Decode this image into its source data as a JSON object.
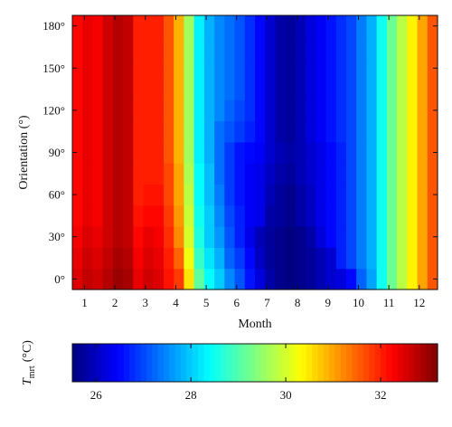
{
  "chart_data": {
    "type": "heatmap",
    "title": "",
    "xlabel": "Month",
    "ylabel": "Orientation (°)",
    "x_tick_labels": [
      "1",
      "2",
      "3",
      "4",
      "5",
      "6",
      "7",
      "8",
      "9",
      "10",
      "11",
      "12"
    ],
    "y_tick_labels": [
      "0°",
      "30°",
      "60°",
      "90°",
      "120°",
      "150°",
      "180°"
    ],
    "x_ticks": [
      1,
      2,
      3,
      4,
      5,
      6,
      7,
      8,
      9,
      10,
      11,
      12
    ],
    "y_ticks": [
      0,
      30,
      60,
      90,
      120,
      150,
      180
    ],
    "xlim": [
      0.6,
      12.6
    ],
    "ylim": [
      -7.5,
      187.5
    ],
    "x_step": 0.33333,
    "y_step": 15,
    "x_start": 0.6,
    "y_start": -7.5,
    "colormap": "jet",
    "colorbar": {
      "label_main": "T",
      "label_sub": "mrt",
      "label_unit": "(°C)",
      "range": [
        25.5,
        33.2
      ],
      "ticks": [
        26,
        28,
        30,
        32
      ],
      "tick_labels": [
        "26",
        "28",
        "30",
        "32"
      ]
    },
    "grid": false,
    "rows_bottom_to_top": [
      [
        32.5,
        32.7,
        32.6,
        32.8,
        33.0,
        32.9,
        32.4,
        32.6,
        32.5,
        32.1,
        31.8,
        30.5,
        29.1,
        28.4,
        28.0,
        27.5,
        27.1,
        26.6,
        26.2,
        25.8,
        25.6,
        25.5,
        25.6,
        25.7,
        25.9,
        26.1,
        26.2,
        26.5,
        27.2,
        27.7,
        28.5,
        29.2,
        29.8,
        30.4,
        31.0,
        31.6
      ],
      [
        32.4,
        32.6,
        32.5,
        32.7,
        32.9,
        32.8,
        32.3,
        32.5,
        32.4,
        32.0,
        31.5,
        30.2,
        28.8,
        28.2,
        27.8,
        27.2,
        26.9,
        26.5,
        26.0,
        25.7,
        25.6,
        25.5,
        25.6,
        25.7,
        25.9,
        26.1,
        26.7,
        27.0,
        27.4,
        27.8,
        28.5,
        29.2,
        29.8,
        30.4,
        31.0,
        31.6
      ],
      [
        32.3,
        32.5,
        32.4,
        32.6,
        32.8,
        32.7,
        32.2,
        32.4,
        32.3,
        31.9,
        31.2,
        30.0,
        28.6,
        28.0,
        27.6,
        27.1,
        26.7,
        26.3,
        25.9,
        25.7,
        25.6,
        25.5,
        25.6,
        25.8,
        26.2,
        26.5,
        26.7,
        27.0,
        27.4,
        27.8,
        28.5,
        29.2,
        29.8,
        30.4,
        31.0,
        31.6
      ],
      [
        32.2,
        32.4,
        32.3,
        32.6,
        32.8,
        32.7,
        32.1,
        32.2,
        32.2,
        31.8,
        31.1,
        29.9,
        28.5,
        28.0,
        27.5,
        27.0,
        26.7,
        26.4,
        26.3,
        25.8,
        25.7,
        25.6,
        25.8,
        26.0,
        26.3,
        26.5,
        26.7,
        27.0,
        27.4,
        27.8,
        28.5,
        29.2,
        29.8,
        30.4,
        31.0,
        31.6
      ],
      [
        32.2,
        32.4,
        32.3,
        32.6,
        32.8,
        32.7,
        32.0,
        32.1,
        32.1,
        31.7,
        31.0,
        29.8,
        28.4,
        27.9,
        27.4,
        26.9,
        26.6,
        26.4,
        26.3,
        25.9,
        25.7,
        25.6,
        25.8,
        26.0,
        26.3,
        26.5,
        26.7,
        27.0,
        27.4,
        27.8,
        28.5,
        29.2,
        29.8,
        30.4,
        31.0,
        31.6
      ],
      [
        32.2,
        32.4,
        32.3,
        32.6,
        32.8,
        32.7,
        32.0,
        32.0,
        32.0,
        31.7,
        31.0,
        29.7,
        28.4,
        27.9,
        27.3,
        26.9,
        26.6,
        26.4,
        26.3,
        26.0,
        25.8,
        25.7,
        25.9,
        26.1,
        26.3,
        26.5,
        26.7,
        27.0,
        27.4,
        27.8,
        28.5,
        29.2,
        29.8,
        30.4,
        31.0,
        31.6
      ],
      [
        32.2,
        32.4,
        32.3,
        32.6,
        32.8,
        32.7,
        32.0,
        32.0,
        32.0,
        31.6,
        30.9,
        29.6,
        28.3,
        27.8,
        27.3,
        26.9,
        26.6,
        26.5,
        26.4,
        26.1,
        25.9,
        25.8,
        25.9,
        26.1,
        26.3,
        26.5,
        26.7,
        27.0,
        27.4,
        27.8,
        28.5,
        29.2,
        29.8,
        30.4,
        31.0,
        31.6
      ],
      [
        32.2,
        32.4,
        32.3,
        32.6,
        32.8,
        32.7,
        32.0,
        32.0,
        32.0,
        31.6,
        30.9,
        29.6,
        28.3,
        27.8,
        27.3,
        27.1,
        26.9,
        26.7,
        26.5,
        26.1,
        25.8,
        25.7,
        25.9,
        26.2,
        26.4,
        26.6,
        26.8,
        27.0,
        27.4,
        27.8,
        28.5,
        29.2,
        29.8,
        30.4,
        31.0,
        31.6
      ],
      [
        32.2,
        32.4,
        32.3,
        32.6,
        32.8,
        32.7,
        32.0,
        32.0,
        32.0,
        31.6,
        30.9,
        29.6,
        28.3,
        27.8,
        27.5,
        27.2,
        27.0,
        26.8,
        26.5,
        26.1,
        25.8,
        25.7,
        25.9,
        26.2,
        26.4,
        26.6,
        26.8,
        27.0,
        27.4,
        27.8,
        28.5,
        29.2,
        29.8,
        30.4,
        31.0,
        31.6
      ],
      [
        32.2,
        32.4,
        32.3,
        32.6,
        32.8,
        32.7,
        32.0,
        32.0,
        32.0,
        31.6,
        30.9,
        29.6,
        28.3,
        27.8,
        27.5,
        27.3,
        27.1,
        26.8,
        26.5,
        26.1,
        25.8,
        25.7,
        25.9,
        26.2,
        26.4,
        26.6,
        26.8,
        27.0,
        27.4,
        27.8,
        28.5,
        29.2,
        29.8,
        30.4,
        31.0,
        31.6
      ],
      [
        32.2,
        32.4,
        32.3,
        32.6,
        32.8,
        32.7,
        32.0,
        32.0,
        32.0,
        31.6,
        30.9,
        29.6,
        28.3,
        27.8,
        27.5,
        27.3,
        27.1,
        26.8,
        26.5,
        26.1,
        25.8,
        25.7,
        25.9,
        26.2,
        26.4,
        26.6,
        26.8,
        27.0,
        27.4,
        27.8,
        28.5,
        29.2,
        29.8,
        30.4,
        31.0,
        31.6
      ],
      [
        32.2,
        32.4,
        32.3,
        32.6,
        32.8,
        32.7,
        32.0,
        32.0,
        32.0,
        31.6,
        30.9,
        29.6,
        28.3,
        27.8,
        27.5,
        27.3,
        27.1,
        26.8,
        26.5,
        26.1,
        25.8,
        25.7,
        25.9,
        26.2,
        26.4,
        26.6,
        26.8,
        27.0,
        27.4,
        27.8,
        28.5,
        29.2,
        29.8,
        30.4,
        31.0,
        31.6
      ],
      [
        32.2,
        32.4,
        32.3,
        32.6,
        32.8,
        32.7,
        32.0,
        32.0,
        32.0,
        31.6,
        30.9,
        29.6,
        28.3,
        27.8,
        27.5,
        27.3,
        27.1,
        26.8,
        26.5,
        26.1,
        25.8,
        25.7,
        25.9,
        26.2,
        26.4,
        26.6,
        26.8,
        27.0,
        27.4,
        27.8,
        28.5,
        29.2,
        29.8,
        30.4,
        31.0,
        31.6
      ]
    ]
  }
}
